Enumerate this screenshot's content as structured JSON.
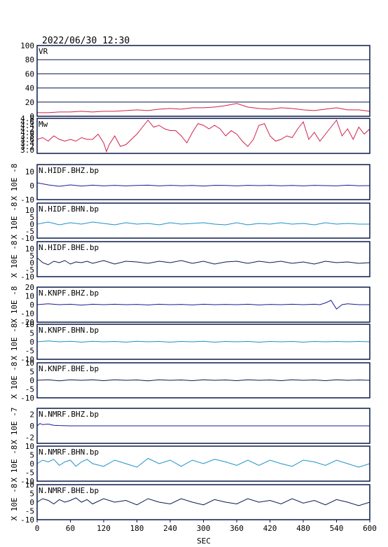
{
  "header": {
    "timestamp": "2022/06/30 12:30"
  },
  "chart_data": {
    "type": "line",
    "xlabel": "SEC",
    "xlim": [
      0,
      600
    ],
    "xticks": [
      "0",
      "60",
      "120",
      "180",
      "240",
      "300",
      "360",
      "420",
      "480",
      "540",
      "600"
    ],
    "panels": [
      {
        "id": "vr",
        "label": "VR",
        "ylim": [
          0,
          100
        ],
        "yticks": [
          "100",
          "80",
          "60",
          "40",
          "20",
          "0"
        ],
        "ytick_values": [
          100,
          80,
          60,
          40,
          20,
          0
        ],
        "ylabel": "",
        "gridlines": [
          20,
          40,
          60,
          80
        ],
        "color": "#d0204a",
        "series": {
          "x": [
            0,
            20,
            40,
            60,
            80,
            100,
            120,
            140,
            160,
            180,
            200,
            220,
            240,
            260,
            280,
            300,
            320,
            340,
            360,
            380,
            400,
            420,
            440,
            460,
            480,
            500,
            520,
            540,
            560,
            580,
            600
          ],
          "y": [
            5,
            5,
            6,
            6,
            7,
            6,
            7,
            7,
            8,
            9,
            8,
            10,
            11,
            10,
            12,
            12,
            13,
            15,
            18,
            13,
            11,
            10,
            12,
            11,
            9,
            8,
            10,
            12,
            9,
            9,
            7
          ]
        }
      },
      {
        "id": "mw",
        "label": "Mw",
        "ylim": [
          2.8,
          4.8
        ],
        "yticks": [
          "4.8",
          "4.6",
          "4.4",
          "4.2",
          "4.0",
          "3.8",
          "3.6",
          "3.4",
          "3.2",
          "3.0"
        ],
        "ytick_values": [
          4.8,
          4.6,
          4.4,
          4.2,
          4.0,
          3.8,
          3.6,
          3.4,
          3.2,
          3.0
        ],
        "ylabel": "",
        "gridlines": [],
        "color": "#d0204a",
        "series": {
          "x": [
            0,
            10,
            20,
            30,
            40,
            50,
            60,
            70,
            80,
            90,
            100,
            110,
            120,
            125,
            130,
            140,
            150,
            160,
            170,
            180,
            190,
            200,
            210,
            220,
            230,
            240,
            250,
            260,
            270,
            280,
            290,
            300,
            310,
            320,
            330,
            340,
            350,
            360,
            370,
            380,
            390,
            400,
            410,
            420,
            430,
            440,
            450,
            460,
            470,
            480,
            490,
            500,
            510,
            520,
            530,
            540,
            550,
            560,
            570,
            580,
            590,
            600
          ],
          "y": [
            3.6,
            3.7,
            3.5,
            3.8,
            3.6,
            3.5,
            3.6,
            3.5,
            3.7,
            3.6,
            3.6,
            3.9,
            3.4,
            2.9,
            3.3,
            3.8,
            3.2,
            3.3,
            3.6,
            3.9,
            4.3,
            4.7,
            4.3,
            4.4,
            4.2,
            4.1,
            4.1,
            3.8,
            3.4,
            4.0,
            4.5,
            4.4,
            4.2,
            4.4,
            4.2,
            3.8,
            4.1,
            3.9,
            3.5,
            3.2,
            3.6,
            4.4,
            4.5,
            3.8,
            3.5,
            3.6,
            3.8,
            3.7,
            4.2,
            4.6,
            3.6,
            4.0,
            3.5,
            3.9,
            4.3,
            4.7,
            3.8,
            4.2,
            3.6,
            4.3,
            3.9,
            4.2
          ]
        }
      },
      {
        "id": "hidf-bhz",
        "label": "N.HIDF.BHZ.bp",
        "ylim": [
          -10,
          15
        ],
        "yticks": [
          "10",
          "0",
          "-10"
        ],
        "ytick_values": [
          10,
          0,
          -10
        ],
        "ylabel": "X 10E -8",
        "gridlines": [],
        "color": "#1a1a9a",
        "series": {
          "x": [
            0,
            20,
            40,
            60,
            80,
            100,
            120,
            140,
            160,
            180,
            200,
            220,
            240,
            260,
            280,
            300,
            320,
            340,
            360,
            380,
            400,
            420,
            440,
            460,
            480,
            500,
            520,
            540,
            560,
            580,
            600
          ],
          "y": [
            2,
            0.5,
            -0.5,
            0.5,
            -0.3,
            0.3,
            -0.2,
            0.2,
            -0.2,
            0.1,
            0.3,
            -0.2,
            0.2,
            -0.1,
            0.1,
            -0.3,
            0.2,
            0.1,
            -0.2,
            0.2,
            0,
            0.2,
            -0.1,
            0.1,
            -0.2,
            0.2,
            0,
            -0.2,
            0.3,
            -0.1,
            0
          ]
        }
      },
      {
        "id": "hidf-bhn",
        "label": "N.HIDF.BHN.bp",
        "ylim": [
          -10,
          15
        ],
        "yticks": [
          "10",
          "5",
          "0",
          "-5",
          "-10"
        ],
        "ytick_values": [
          10,
          5,
          0,
          -5,
          -10
        ],
        "ylabel": "X 10E -8",
        "gridlines": [],
        "color": "#1e90c8",
        "series": {
          "x": [
            0,
            20,
            40,
            60,
            80,
            100,
            120,
            140,
            160,
            180,
            200,
            220,
            240,
            260,
            280,
            300,
            320,
            340,
            360,
            380,
            400,
            420,
            440,
            460,
            480,
            500,
            520,
            540,
            560,
            580,
            600
          ],
          "y": [
            0,
            1.5,
            -0.5,
            1,
            0,
            1.5,
            0.5,
            -0.5,
            1,
            0,
            0.5,
            -0.5,
            1,
            0,
            0.5,
            1,
            0,
            -0.5,
            1,
            -0.5,
            0.5,
            0,
            1,
            0,
            0.5,
            -0.5,
            1,
            0,
            0.5,
            0,
            0
          ]
        }
      },
      {
        "id": "hidf-bhe",
        "label": "N.HIDF.BHE.bp",
        "ylim": [
          -10,
          15
        ],
        "yticks": [
          "10",
          "5",
          "0",
          "-5",
          "-10"
        ],
        "ytick_values": [
          10,
          5,
          0,
          -5,
          -10
        ],
        "ylabel": "X 10E -8",
        "gridlines": [],
        "color": "#0b1a4a",
        "series": {
          "x": [
            0,
            10,
            20,
            30,
            40,
            50,
            60,
            70,
            80,
            90,
            100,
            120,
            140,
            160,
            180,
            200,
            220,
            240,
            260,
            280,
            300,
            320,
            340,
            360,
            380,
            400,
            420,
            440,
            460,
            480,
            500,
            520,
            540,
            560,
            580,
            600
          ],
          "y": [
            3.5,
            0,
            -1.5,
            1,
            0,
            1.5,
            -1,
            0.5,
            0,
            1,
            -0.5,
            1.5,
            -1,
            1,
            0.5,
            -0.5,
            1,
            0,
            1.5,
            -0.5,
            1,
            -1,
            0.5,
            1,
            -0.5,
            1,
            0,
            1,
            -0.5,
            0.5,
            -1,
            1,
            0,
            0.5,
            -0.5,
            0
          ]
        }
      },
      {
        "id": "knpf-bhz",
        "label": "N.KNPF.BHZ.bp",
        "ylim": [
          -20,
          20
        ],
        "yticks": [
          "20",
          "10",
          "0",
          "-10",
          "-20"
        ],
        "ytick_values": [
          20,
          10,
          0,
          -10,
          -20
        ],
        "ylabel": "X 10E -8",
        "gridlines": [],
        "color": "#1a1a9a",
        "series": {
          "x": [
            0,
            20,
            40,
            60,
            80,
            100,
            120,
            140,
            160,
            180,
            200,
            220,
            240,
            260,
            280,
            300,
            320,
            340,
            360,
            380,
            400,
            420,
            440,
            460,
            480,
            500,
            510,
            520,
            530,
            540,
            550,
            560,
            580,
            600
          ],
          "y": [
            0,
            1,
            0,
            0.5,
            -0.5,
            0.5,
            0,
            0.5,
            0,
            0.3,
            -0.3,
            0.5,
            0,
            0.3,
            -0.3,
            0.5,
            0,
            0.3,
            0,
            0.5,
            -0.3,
            0.3,
            0,
            0.5,
            0,
            0.5,
            0,
            2,
            5,
            -5,
            0,
            1,
            0,
            0
          ]
        }
      },
      {
        "id": "knpf-bhn",
        "label": "N.KNPF.BHN.bp",
        "ylim": [
          -10,
          10
        ],
        "yticks": [
          "10",
          "5",
          "0",
          "-5",
          "-10"
        ],
        "ytick_values": [
          10,
          5,
          0,
          -5,
          -10
        ],
        "ylabel": "X 10E -8",
        "gridlines": [],
        "color": "#1e90c8",
        "series": {
          "x": [
            0,
            20,
            40,
            60,
            80,
            100,
            120,
            140,
            160,
            180,
            200,
            220,
            240,
            260,
            280,
            300,
            320,
            340,
            360,
            380,
            400,
            420,
            440,
            460,
            480,
            500,
            520,
            540,
            560,
            580,
            600
          ],
          "y": [
            0,
            0.5,
            0,
            0.3,
            -0.2,
            0.3,
            0,
            0.2,
            -0.2,
            0.3,
            0,
            0.2,
            -0.2,
            0.2,
            0,
            0.3,
            -0.2,
            0.2,
            0,
            0.2,
            -0.2,
            0.2,
            0,
            0.2,
            -0.2,
            0.2,
            0,
            0.2,
            0,
            0.2,
            0
          ]
        }
      },
      {
        "id": "knpf-bhe",
        "label": "N.KNPF.BHE.bp",
        "ylim": [
          -10,
          10
        ],
        "yticks": [
          "10",
          "5",
          "0",
          "-5",
          "-10"
        ],
        "ytick_values": [
          10,
          5,
          0,
          -5,
          -10
        ],
        "ylabel": "X 10E -8",
        "gridlines": [],
        "color": "#0b1a4a",
        "series": {
          "x": [
            0,
            20,
            40,
            60,
            80,
            100,
            120,
            140,
            160,
            180,
            200,
            220,
            240,
            260,
            280,
            300,
            320,
            340,
            360,
            380,
            400,
            420,
            440,
            460,
            480,
            500,
            520,
            540,
            560,
            580,
            600
          ],
          "y": [
            0,
            0.3,
            -0.3,
            0.3,
            0,
            0.3,
            -0.2,
            0.3,
            0,
            0.2,
            -0.3,
            0.3,
            0,
            0.2,
            -0.2,
            0.3,
            0,
            0.2,
            -0.2,
            0.3,
            0,
            0.2,
            -0.2,
            0.3,
            0,
            0.2,
            -0.2,
            0.3,
            0,
            0.2,
            0
          ]
        }
      },
      {
        "id": "nmrf-bhz",
        "label": "N.NMRF.BHZ.bp",
        "ylim": [
          -3,
          3
        ],
        "yticks": [
          "2",
          "0",
          "-2"
        ],
        "ytick_values": [
          2,
          0,
          -2
        ],
        "ylabel": "X 10E -7",
        "gridlines": [],
        "color": "#1a1a9a",
        "series": {
          "x": [
            0,
            5,
            10,
            20,
            30,
            40,
            60,
            80,
            100,
            150,
            200,
            250,
            300,
            350,
            400,
            450,
            500,
            550,
            600
          ],
          "y": [
            0,
            0.4,
            0.2,
            0.3,
            0.1,
            0.05,
            0,
            0,
            0,
            0,
            0,
            0,
            0,
            0,
            0,
            0,
            0,
            0,
            0
          ]
        }
      },
      {
        "id": "nmrf-bhn",
        "label": "N.NMRF.BHN.bp",
        "ylim": [
          -10,
          10
        ],
        "yticks": [
          "10",
          "5",
          "0",
          "-5",
          "-10"
        ],
        "ytick_values": [
          10,
          5,
          0,
          -5,
          -10
        ],
        "ylabel": "X 10E -8",
        "gridlines": [],
        "color": "#1e90c8",
        "series": {
          "x": [
            0,
            10,
            20,
            30,
            40,
            50,
            60,
            70,
            80,
            90,
            100,
            120,
            140,
            160,
            180,
            200,
            220,
            240,
            260,
            280,
            300,
            320,
            340,
            360,
            380,
            400,
            420,
            440,
            460,
            480,
            500,
            520,
            540,
            560,
            580,
            600
          ],
          "y": [
            0,
            2,
            1,
            2.5,
            -1,
            1,
            2,
            -1.5,
            1,
            2.5,
            0,
            -1.5,
            2,
            0,
            -2,
            3,
            0,
            2,
            -1.5,
            2,
            0,
            2.5,
            1,
            -1,
            2,
            -1,
            2,
            0,
            -1.5,
            2,
            1,
            -1,
            2,
            0,
            -2,
            0
          ]
        }
      },
      {
        "id": "nmrf-bhe",
        "label": "N.NMRF.BHE.bp",
        "ylim": [
          -10,
          10
        ],
        "yticks": [
          "10",
          "5",
          "0",
          "-5",
          "-10"
        ],
        "ytick_values": [
          10,
          5,
          0,
          -5,
          -10
        ],
        "ylabel": "X 10E -8",
        "gridlines": [],
        "color": "#0b1a4a",
        "series": {
          "x": [
            0,
            10,
            20,
            30,
            40,
            50,
            60,
            70,
            80,
            90,
            100,
            120,
            140,
            160,
            180,
            200,
            220,
            240,
            260,
            280,
            300,
            320,
            340,
            360,
            380,
            400,
            420,
            440,
            460,
            480,
            500,
            520,
            540,
            560,
            580,
            600
          ],
          "y": [
            0,
            2,
            1,
            -1,
            1.5,
            0,
            1,
            2.5,
            0,
            1.5,
            -1,
            2,
            0,
            1,
            -1.5,
            2,
            0,
            -1,
            2,
            0,
            -1.5,
            1.5,
            0,
            -1,
            2,
            0,
            1,
            -1,
            2,
            -0.5,
            1,
            -1.5,
            1.5,
            0,
            -2,
            0
          ]
        }
      }
    ]
  }
}
